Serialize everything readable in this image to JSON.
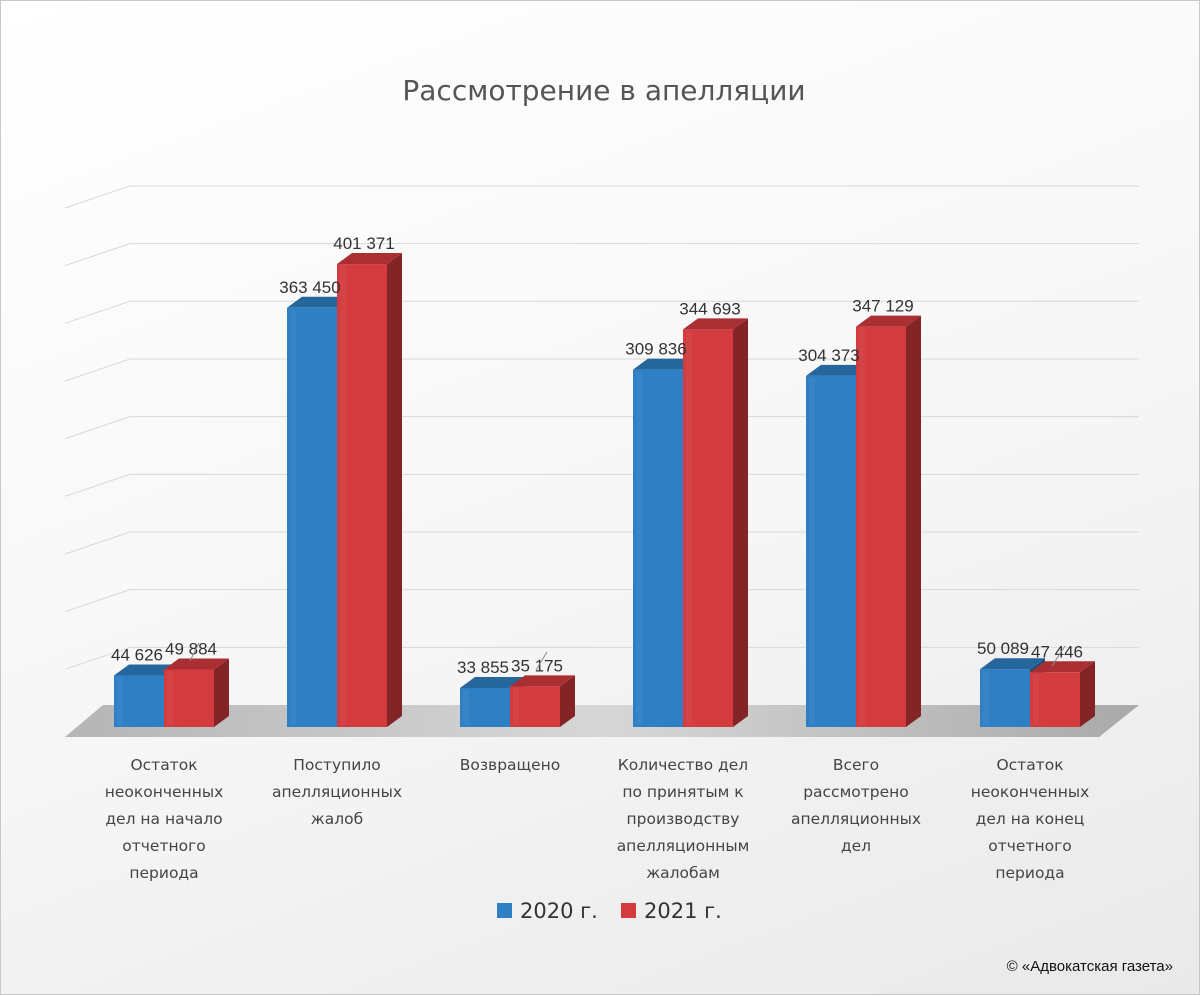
{
  "chart_data": {
    "type": "bar",
    "title": "Рассмотрение в апелляции",
    "xlabel": "",
    "ylabel": "",
    "ylim": [
      0,
      450000
    ],
    "grid": true,
    "legend_position": "bottom",
    "categories": [
      [
        "Остаток",
        "неоконченных",
        "дел на начало",
        "отчетного",
        "периода"
      ],
      [
        "Поступило",
        "апелляционных",
        "жалоб"
      ],
      [
        "Возвращено"
      ],
      [
        "Количество дел",
        "по принятым к",
        "производству",
        "апелляционным",
        "жалобам"
      ],
      [
        "Всего",
        "рассмотрено",
        "апелляционных",
        "дел"
      ],
      [
        "Остаток",
        "неоконченных",
        "дел на конец",
        "отчетного",
        "периода"
      ]
    ],
    "series": [
      {
        "name": "2020 г.",
        "color": "#2e7fc4",
        "values": [
          44626,
          363450,
          33855,
          309836,
          304373,
          50089
        ],
        "labels": [
          "44 626",
          "363 450",
          "33 855",
          "309 836",
          "304 373",
          "50 089"
        ]
      },
      {
        "name": "2021 г.",
        "color": "#d33b3e",
        "values": [
          49884,
          401371,
          35175,
          344693,
          347129,
          47446
        ],
        "labels": [
          "49 884",
          "401 371",
          "35 175",
          "344 693",
          "347 129",
          "47 446"
        ]
      }
    ]
  },
  "footer": {
    "copyright": "© «Адвокатская газета»"
  }
}
